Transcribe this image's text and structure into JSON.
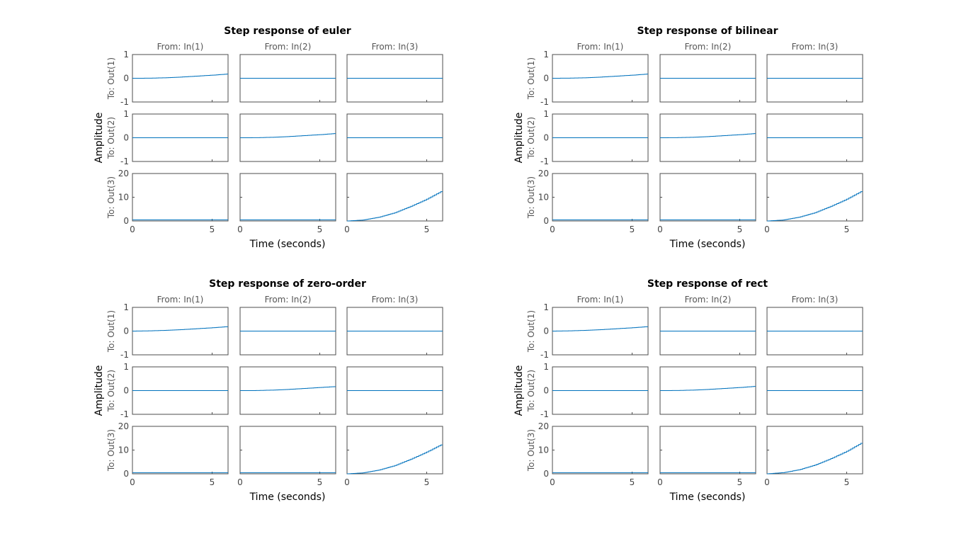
{
  "chart_data": [
    {
      "type": "line",
      "title": "Step response of euler",
      "xlabel": "Time (seconds)",
      "ylabel": "Amplitude",
      "input_labels": [
        "From: In(1)",
        "From: In(2)",
        "From: In(3)"
      ],
      "output_labels": [
        "To: Out(1)",
        "To: Out(2)",
        "To: Out(3)"
      ],
      "xlim": [
        0,
        6
      ],
      "x_ticks": [
        0,
        5
      ],
      "x_tick_labels": [
        "0",
        "5"
      ],
      "row_ylims": [
        [
          -1,
          1
        ],
        [
          -1,
          1
        ],
        [
          0,
          20
        ]
      ],
      "row_y_ticks": [
        [
          -1,
          0,
          1
        ],
        [
          -1,
          0,
          1
        ],
        [
          0,
          10,
          20
        ]
      ],
      "row_y_tick_labels": [
        [
          "-1",
          "0",
          "1"
        ],
        [
          "-1",
          "0",
          "1"
        ],
        [
          "0",
          "10",
          "20"
        ]
      ],
      "grid": false,
      "series": [
        {
          "out": 1,
          "in": 1,
          "x": [
            0,
            1,
            2,
            3,
            4,
            5,
            6
          ],
          "y": [
            0,
            0.003,
            0.02,
            0.05,
            0.09,
            0.13,
            0.18
          ]
        },
        {
          "out": 1,
          "in": 2,
          "x": [
            0,
            6
          ],
          "y": [
            0,
            0
          ]
        },
        {
          "out": 1,
          "in": 3,
          "x": [
            0,
            6
          ],
          "y": [
            0,
            0
          ]
        },
        {
          "out": 2,
          "in": 1,
          "x": [
            0,
            6
          ],
          "y": [
            0,
            0
          ]
        },
        {
          "out": 2,
          "in": 2,
          "x": [
            0,
            1,
            2,
            3,
            4,
            5,
            6
          ],
          "y": [
            0,
            0.003,
            0.02,
            0.05,
            0.09,
            0.13,
            0.18
          ]
        },
        {
          "out": 2,
          "in": 3,
          "x": [
            0,
            6
          ],
          "y": [
            0,
            0
          ]
        },
        {
          "out": 3,
          "in": 1,
          "x": [
            0,
            6
          ],
          "y": [
            0.5,
            0.5
          ]
        },
        {
          "out": 3,
          "in": 2,
          "x": [
            0,
            6
          ],
          "y": [
            0.5,
            0.5
          ]
        },
        {
          "out": 3,
          "in": 3,
          "x": [
            0,
            1,
            2,
            3,
            4,
            5,
            6
          ],
          "y": [
            0,
            0.4,
            1.6,
            3.5,
            6.2,
            9.2,
            12.8
          ]
        }
      ]
    },
    {
      "type": "line",
      "title": "Step response of bilinear",
      "xlabel": "Time (seconds)",
      "ylabel": "Amplitude",
      "input_labels": [
        "From: In(1)",
        "From: In(2)",
        "From: In(3)"
      ],
      "output_labels": [
        "To: Out(1)",
        "To: Out(2)",
        "To: Out(3)"
      ],
      "xlim": [
        0,
        6
      ],
      "x_ticks": [
        0,
        5
      ],
      "x_tick_labels": [
        "0",
        "5"
      ],
      "row_ylims": [
        [
          -1,
          1
        ],
        [
          -1,
          1
        ],
        [
          0,
          20
        ]
      ],
      "row_y_ticks": [
        [
          -1,
          0,
          1
        ],
        [
          -1,
          0,
          1
        ],
        [
          0,
          10,
          20
        ]
      ],
      "row_y_tick_labels": [
        [
          "-1",
          "0",
          "1"
        ],
        [
          "-1",
          "0",
          "1"
        ],
        [
          "0",
          "10",
          "20"
        ]
      ],
      "grid": false,
      "series": [
        {
          "out": 1,
          "in": 1,
          "x": [
            0,
            1,
            2,
            3,
            4,
            5,
            6
          ],
          "y": [
            0,
            0.004,
            0.02,
            0.05,
            0.09,
            0.13,
            0.18
          ]
        },
        {
          "out": 1,
          "in": 2,
          "x": [
            0,
            6
          ],
          "y": [
            0,
            0
          ]
        },
        {
          "out": 1,
          "in": 3,
          "x": [
            0,
            6
          ],
          "y": [
            0,
            0
          ]
        },
        {
          "out": 2,
          "in": 1,
          "x": [
            0,
            6
          ],
          "y": [
            0,
            0
          ]
        },
        {
          "out": 2,
          "in": 2,
          "x": [
            0,
            1,
            2,
            3,
            4,
            5,
            6
          ],
          "y": [
            0,
            0.004,
            0.02,
            0.05,
            0.09,
            0.13,
            0.18
          ]
        },
        {
          "out": 2,
          "in": 3,
          "x": [
            0,
            6
          ],
          "y": [
            0,
            0
          ]
        },
        {
          "out": 3,
          "in": 1,
          "x": [
            0,
            6
          ],
          "y": [
            0.5,
            0.5
          ]
        },
        {
          "out": 3,
          "in": 2,
          "x": [
            0,
            6
          ],
          "y": [
            0.5,
            0.5
          ]
        },
        {
          "out": 3,
          "in": 3,
          "x": [
            0,
            1,
            2,
            3,
            4,
            5,
            6
          ],
          "y": [
            0,
            0.4,
            1.6,
            3.5,
            6.2,
            9.2,
            12.8
          ]
        }
      ]
    },
    {
      "type": "line",
      "title": "Step response of zero-order",
      "xlabel": "Time (seconds)",
      "ylabel": "Amplitude",
      "input_labels": [
        "From: In(1)",
        "From: In(2)",
        "From: In(3)"
      ],
      "output_labels": [
        "To: Out(1)",
        "To: Out(2)",
        "To: Out(3)"
      ],
      "xlim": [
        0,
        6
      ],
      "x_ticks": [
        0,
        5
      ],
      "x_tick_labels": [
        "0",
        "5"
      ],
      "row_ylims": [
        [
          -1,
          1
        ],
        [
          -1,
          1
        ],
        [
          0,
          20
        ]
      ],
      "row_y_ticks": [
        [
          -1,
          0,
          1
        ],
        [
          -1,
          0,
          1
        ],
        [
          0,
          10,
          20
        ]
      ],
      "row_y_tick_labels": [
        [
          "-1",
          "0",
          "1"
        ],
        [
          "-1",
          "0",
          "1"
        ],
        [
          "0",
          "10",
          "20"
        ]
      ],
      "grid": false,
      "series": [
        {
          "out": 1,
          "in": 1,
          "x": [
            0,
            1,
            2,
            3,
            4,
            5,
            6
          ],
          "y": [
            0,
            0.01,
            0.03,
            0.06,
            0.1,
            0.14,
            0.19
          ]
        },
        {
          "out": 1,
          "in": 2,
          "x": [
            0,
            6
          ],
          "y": [
            0,
            0
          ]
        },
        {
          "out": 1,
          "in": 3,
          "x": [
            0,
            6
          ],
          "y": [
            0,
            0
          ]
        },
        {
          "out": 2,
          "in": 1,
          "x": [
            0,
            6
          ],
          "y": [
            0,
            0
          ]
        },
        {
          "out": 2,
          "in": 2,
          "x": [
            0,
            1,
            2,
            3,
            4,
            5,
            6
          ],
          "y": [
            0,
            0.002,
            0.02,
            0.05,
            0.09,
            0.13,
            0.17
          ]
        },
        {
          "out": 2,
          "in": 3,
          "x": [
            0,
            6
          ],
          "y": [
            0,
            0
          ]
        },
        {
          "out": 3,
          "in": 1,
          "x": [
            0,
            6
          ],
          "y": [
            0.5,
            0.5
          ]
        },
        {
          "out": 3,
          "in": 2,
          "x": [
            0,
            6
          ],
          "y": [
            0.5,
            0.5
          ]
        },
        {
          "out": 3,
          "in": 3,
          "x": [
            0,
            1,
            2,
            3,
            4,
            5,
            6
          ],
          "y": [
            0,
            0.4,
            1.6,
            3.5,
            6.2,
            9.2,
            12.6
          ]
        }
      ]
    },
    {
      "type": "line",
      "title": "Step response of rect",
      "xlabel": "Time (seconds)",
      "ylabel": "Amplitude",
      "input_labels": [
        "From: In(1)",
        "From: In(2)",
        "From: In(3)"
      ],
      "output_labels": [
        "To: Out(1)",
        "To: Out(2)",
        "To: Out(3)"
      ],
      "xlim": [
        0,
        6
      ],
      "x_ticks": [
        0,
        5
      ],
      "x_tick_labels": [
        "0",
        "5"
      ],
      "row_ylims": [
        [
          -1,
          1
        ],
        [
          -1,
          1
        ],
        [
          0,
          20
        ]
      ],
      "row_y_ticks": [
        [
          -1,
          0,
          1
        ],
        [
          -1,
          0,
          1
        ],
        [
          0,
          10,
          20
        ]
      ],
      "row_y_tick_labels": [
        [
          "-1",
          "0",
          "1"
        ],
        [
          "-1",
          "0",
          "1"
        ],
        [
          "0",
          "10",
          "20"
        ]
      ],
      "grid": false,
      "series": [
        {
          "out": 1,
          "in": 1,
          "x": [
            0,
            1,
            2,
            3,
            4,
            5,
            6
          ],
          "y": [
            0,
            0.01,
            0.03,
            0.06,
            0.1,
            0.14,
            0.19
          ]
        },
        {
          "out": 1,
          "in": 2,
          "x": [
            0,
            6
          ],
          "y": [
            0,
            0
          ]
        },
        {
          "out": 1,
          "in": 3,
          "x": [
            0,
            6
          ],
          "y": [
            0,
            0
          ]
        },
        {
          "out": 2,
          "in": 1,
          "x": [
            0,
            6
          ],
          "y": [
            0,
            0
          ]
        },
        {
          "out": 2,
          "in": 2,
          "x": [
            0,
            1,
            2,
            3,
            4,
            5,
            6
          ],
          "y": [
            0,
            0.003,
            0.02,
            0.05,
            0.09,
            0.13,
            0.18
          ]
        },
        {
          "out": 2,
          "in": 3,
          "x": [
            0,
            6
          ],
          "y": [
            0,
            0
          ]
        },
        {
          "out": 3,
          "in": 1,
          "x": [
            0,
            6
          ],
          "y": [
            0.5,
            0.5
          ]
        },
        {
          "out": 3,
          "in": 2,
          "x": [
            0,
            6
          ],
          "y": [
            0.5,
            0.5
          ]
        },
        {
          "out": 3,
          "in": 3,
          "x": [
            0,
            1,
            2,
            3,
            4,
            5,
            6
          ],
          "y": [
            0,
            0.5,
            1.7,
            3.7,
            6.4,
            9.5,
            13.3
          ]
        }
      ]
    }
  ]
}
